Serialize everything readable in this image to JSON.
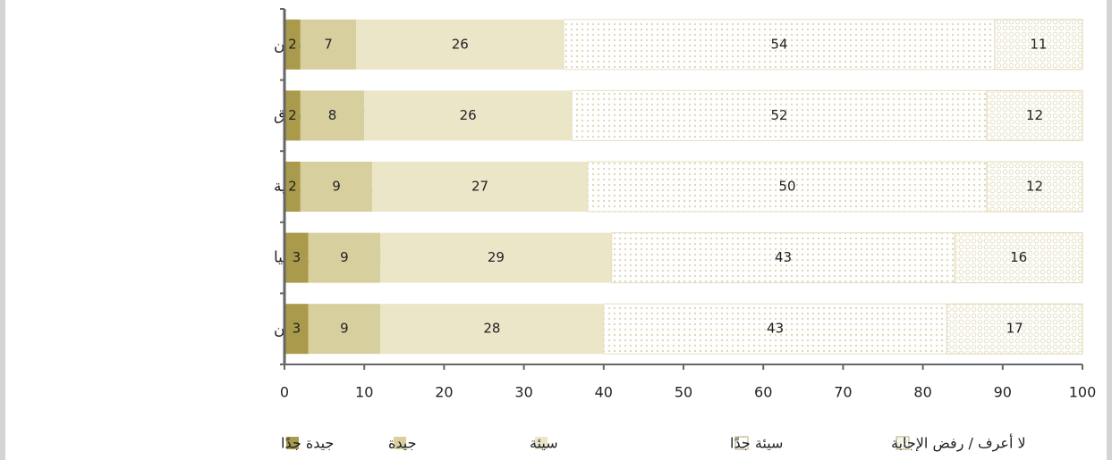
{
  "chart_data": {
    "type": "stacked_barh",
    "categories": [
      "السياسات الأميركية  نحو فلسطين",
      "السياسات الأميركية  نحو العراق",
      "السياسات الأميركية نحو سورية",
      "السياسات الأميركية  نحو ليبيا",
      "السياسات الأميركية  نحو اليمن"
    ],
    "series": [
      {
        "name": "جيدة جدًا",
        "color": "#a99b4b",
        "values": [
          2,
          2,
          2,
          3,
          3
        ]
      },
      {
        "name": "جيدة",
        "color": "#d8cf9f",
        "values": [
          7,
          8,
          9,
          9,
          9
        ]
      },
      {
        "name": "سيئة",
        "color": "#ebe6c8",
        "values": [
          26,
          26,
          27,
          29,
          28
        ]
      },
      {
        "name": "سيئة جدًا",
        "color": "#e6dfc0",
        "fill_pattern": "dots",
        "values": [
          54,
          52,
          50,
          43,
          43
        ]
      },
      {
        "name": "لا أعرف / رفض الإجابة",
        "color": "#e0d8b4",
        "fill_pattern": "rings",
        "values": [
          11,
          12,
          12,
          16,
          17
        ]
      }
    ],
    "xlim": [
      0,
      100
    ],
    "xticks": [
      0,
      10,
      20,
      30,
      40,
      50,
      60,
      70,
      80,
      90,
      100
    ]
  }
}
